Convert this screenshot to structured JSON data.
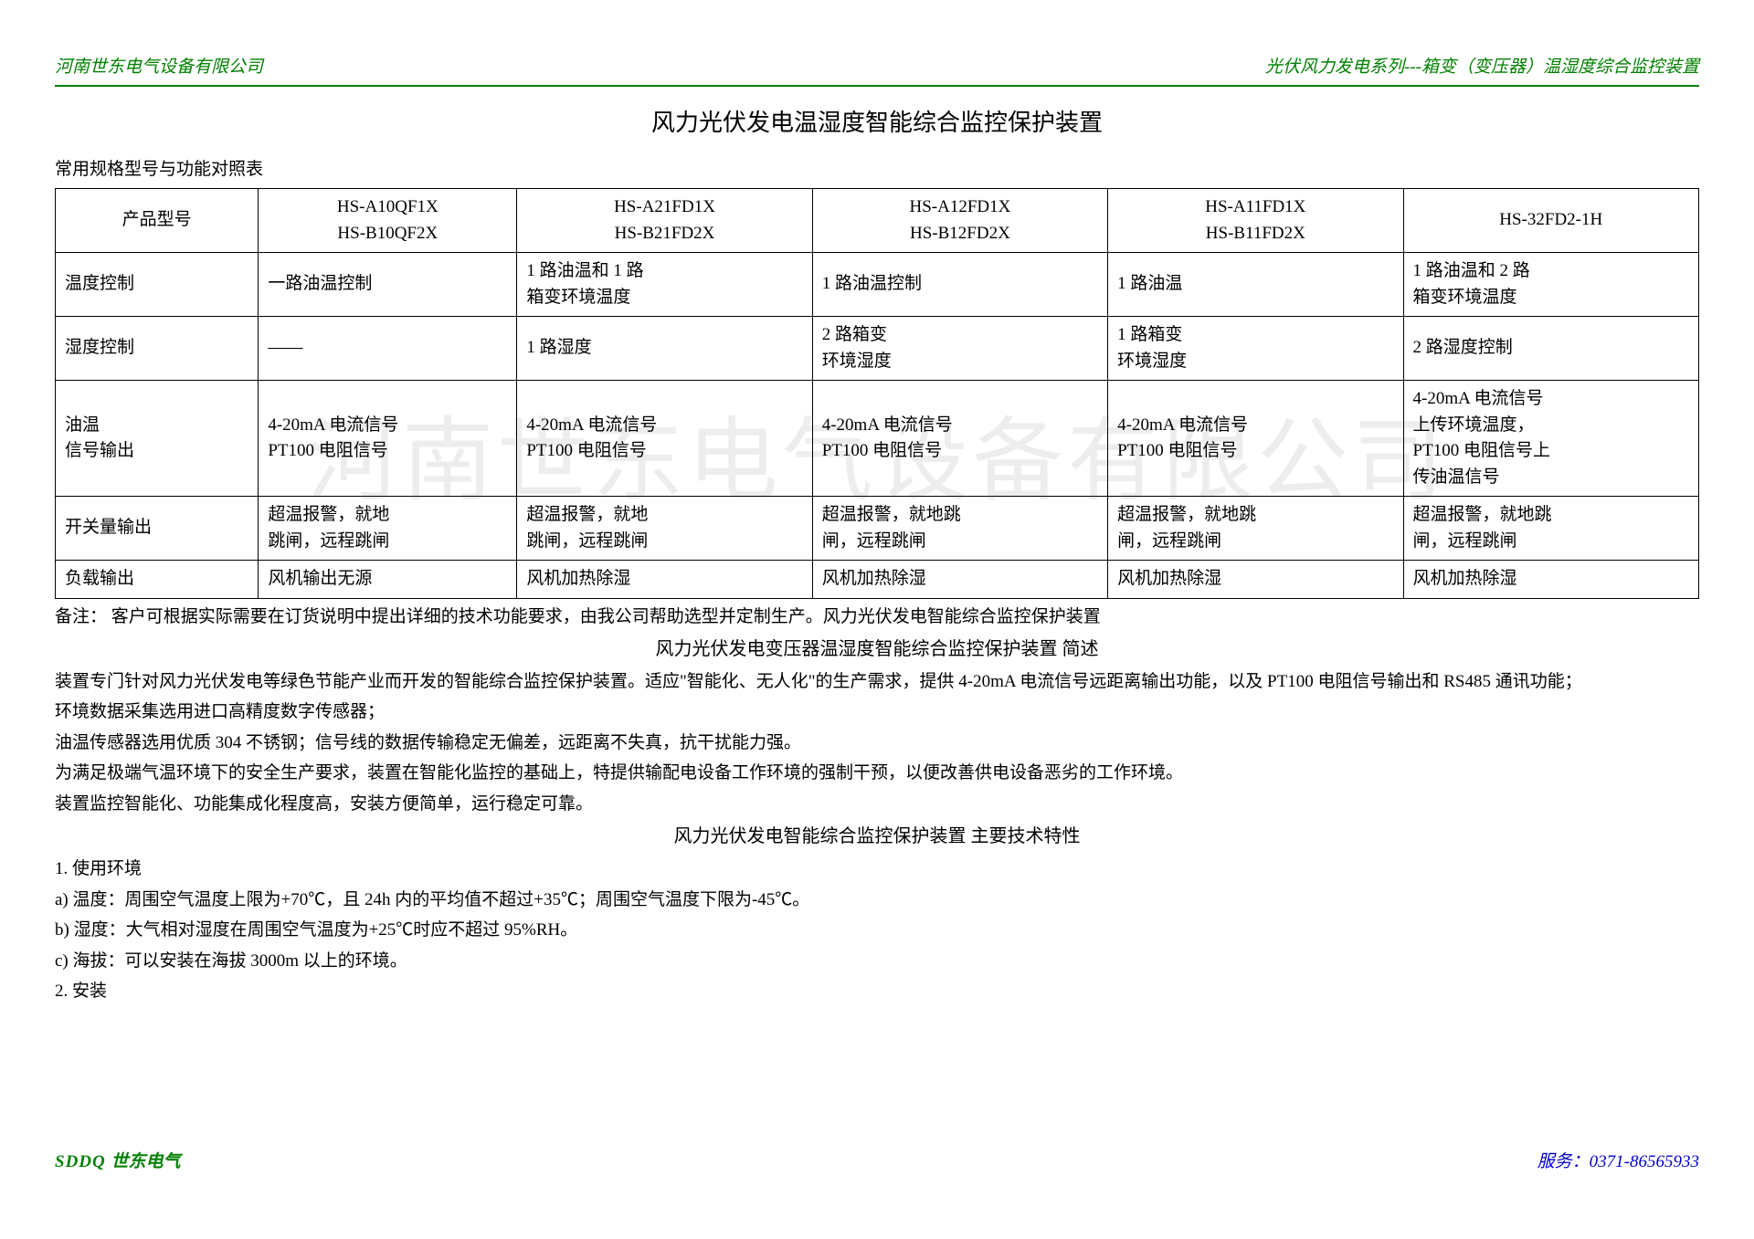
{
  "header": {
    "left": "河南世东电气设备有限公司",
    "right": "光伏风力发电系列---箱变（变压器）温湿度综合监控装置"
  },
  "main_title": "风力光伏发电温湿度智能综合监控保护装置",
  "table_caption": "常用规格型号与功能对照表",
  "table": {
    "columns": [
      "产品型号",
      "HS-A10QF1X\nHS-B10QF2X",
      "HS-A21FD1X\nHS-B21FD2X",
      "HS-A12FD1X\nHS-B12FD2X",
      "HS-A11FD1X\nHS-B11FD2X",
      "HS-32FD2-1H"
    ],
    "rows": [
      [
        "温度控制",
        "一路油温控制",
        "1 路油温和 1 路\n箱变环境温度",
        "1 路油温控制",
        "1 路油温",
        "1 路油温和 2 路\n箱变环境温度"
      ],
      [
        "湿度控制",
        "——",
        "1 路湿度",
        "2 路箱变\n环境湿度",
        "1 路箱变\n环境湿度",
        "2 路湿度控制"
      ],
      [
        "油温\n信号输出",
        "4-20mA 电流信号\nPT100 电阻信号",
        "4-20mA 电流信号\nPT100 电阻信号",
        "4-20mA 电流信号\nPT100 电阻信号",
        "4-20mA 电流信号\nPT100 电阻信号",
        "4-20mA 电流信号\n上传环境温度，\nPT100 电阻信号上\n传油温信号"
      ],
      [
        "开关量输出",
        "超温报警，就地\n跳闸，远程跳闸",
        "超温报警，就地\n跳闸，远程跳闸",
        "超温报警，就地跳\n闸，远程跳闸",
        "超温报警，就地跳\n闸，远程跳闸",
        "超温报警，就地跳\n闸，远程跳闸"
      ],
      [
        "负载输出",
        "风机输出无源",
        "风机加热除湿",
        "风机加热除湿",
        "风机加热除湿",
        "风机加热除湿"
      ]
    ]
  },
  "note": "备注：  客户可根据实际需要在订货说明中提出详细的技术功能要求，由我公司帮助选型并定制生产。风力光伏发电智能综合监控保护装置",
  "section1_title": "风力光伏发电变压器温湿度智能综合监控保护装置 简述",
  "paras": [
    "装置专门针对风力光伏发电等绿色节能产业而开发的智能综合监控保护装置。适应\"智能化、无人化\"的生产需求，提供 4-20mA 电流信号远距离输出功能，以及 PT100 电阻信号输出和 RS485 通讯功能；",
    "环境数据采集选用进口高精度数字传感器；",
    "油温传感器选用优质 304 不锈钢；信号线的数据传输稳定无偏差，远距离不失真，抗干扰能力强。",
    "为满足极端气温环境下的安全生产要求，装置在智能化监控的基础上，特提供输配电设备工作环境的强制干预，以便改善供电设备恶劣的工作环境。",
    "装置监控智能化、功能集成化程度高，安装方便简单，运行稳定可靠。"
  ],
  "section2_title": "风力光伏发电智能综合监控保护装置 主要技术特性",
  "spec_lines": [
    "1. 使用环境",
    "a) 温度：周围空气温度上限为+70℃，且 24h 内的平均值不超过+35℃；周围空气温度下限为-45℃。",
    "b) 湿度：大气相对湿度在周围空气温度为+25℃时应不超过 95%RH。",
    "c) 海拔：可以安装在海拔 3000m 以上的环境。",
    "2. 安装"
  ],
  "footer": {
    "left_en": "SDDQ ",
    "left_cn": "世东电气",
    "right": "服务：0371-86565933"
  },
  "watermark": "河南世东电气设备有限公司"
}
